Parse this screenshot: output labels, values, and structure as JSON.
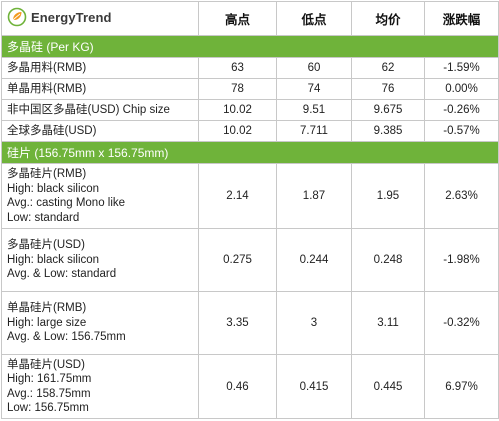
{
  "brand": {
    "logo_text": "EnergyTrend",
    "accent": "#6fb33a"
  },
  "header": {
    "col_high": "高点",
    "col_low": "低点",
    "col_avg": "均价",
    "col_change": "涨跌幅"
  },
  "sections": [
    {
      "title": "多晶硅 (Per KG)",
      "rows": [
        {
          "lines": [
            "多晶用料(RMB)"
          ],
          "high": "63",
          "low": "60",
          "avg": "62",
          "change": "-1.59%"
        },
        {
          "lines": [
            "单晶用料(RMB)"
          ],
          "high": "78",
          "low": "74",
          "avg": "76",
          "change": "0.00%"
        },
        {
          "lines": [
            "非中国区多晶硅(USD) Chip size"
          ],
          "high": "10.02",
          "low": "9.51",
          "avg": "9.675",
          "change": "-0.26%"
        },
        {
          "lines": [
            "全球多晶硅(USD)"
          ],
          "high": "10.02",
          "low": "7.711",
          "avg": "9.385",
          "change": "-0.57%"
        }
      ]
    },
    {
      "title": "硅片 (156.75mm x 156.75mm)",
      "rows": [
        {
          "lines": [
            "多晶硅片(RMB)",
            "High: black silicon",
            "Avg.: casting Mono like",
            "Low: standard"
          ],
          "high": "2.14",
          "low": "1.87",
          "avg": "1.95",
          "change": "2.63%"
        },
        {
          "lines": [
            "多晶硅片(USD)",
            "High: black silicon",
            "Avg. & Low: standard"
          ],
          "high": "0.275",
          "low": "0.244",
          "avg": "0.248",
          "change": "-1.98%"
        },
        {
          "lines": [
            "单晶硅片(RMB)",
            "High: large size",
            "Avg. & Low: 156.75mm"
          ],
          "high": "3.35",
          "low": "3",
          "avg": "3.11",
          "change": "-0.32%"
        },
        {
          "lines": [
            "单晶硅片(USD)",
            "High: 161.75mm",
            "Avg.: 158.75mm",
            "Low: 156.75mm"
          ],
          "high": "0.46",
          "low": "0.415",
          "avg": "0.445",
          "change": "6.97%"
        }
      ]
    }
  ]
}
